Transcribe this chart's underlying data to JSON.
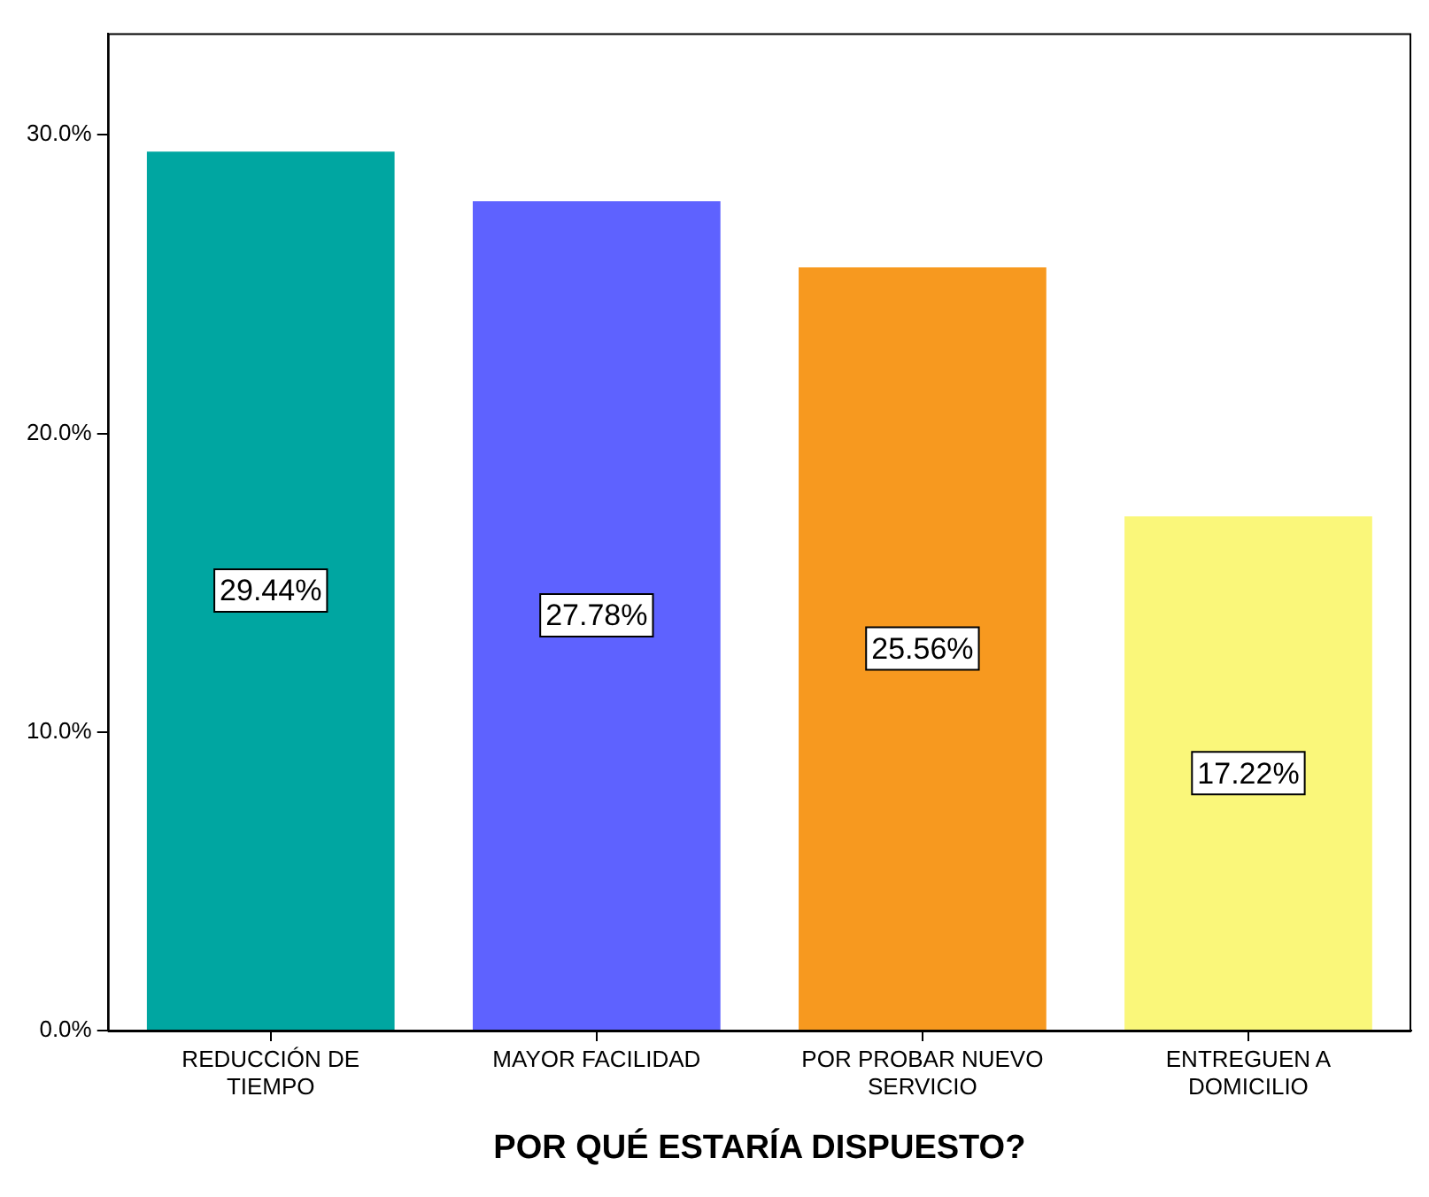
{
  "chart_data": {
    "type": "bar",
    "xlabel": "POR QUÉ ESTARÍA DISPUESTO?",
    "categories": [
      "REDUCCIÓN DE TIEMPO",
      "MAYOR FACILIDAD",
      "POR PROBAR NUEVO SERVICIO",
      "ENTREGUEN A DOMICILIO"
    ],
    "values": [
      29.44,
      27.78,
      25.56,
      17.22
    ],
    "value_labels": [
      "29.44%",
      "27.78%",
      "25.56%",
      "17.22%"
    ],
    "colors": [
      "#00a6a1",
      "#5e62ff",
      "#f7991f",
      "#faf77a"
    ],
    "ylim": [
      0,
      33.4
    ],
    "yticks": [
      {
        "value": 0,
        "label": "0.0%"
      },
      {
        "value": 10,
        "label": "10.0%"
      },
      {
        "value": 20,
        "label": "20.0%"
      },
      {
        "value": 30,
        "label": "30.0%"
      }
    ],
    "grid": false,
    "legend": false
  }
}
